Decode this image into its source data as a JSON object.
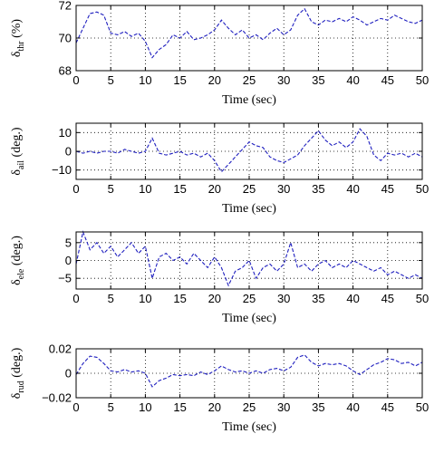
{
  "chart_data": [
    {
      "type": "line",
      "ylabel_main": "δ",
      "ylabel_sub": "thr",
      "ylabel_unit": " (%)",
      "xlabel": "Time (sec)",
      "xlim": [
        0,
        50
      ],
      "ylim": [
        68,
        72
      ],
      "xticks": [
        0,
        5,
        10,
        15,
        20,
        25,
        30,
        35,
        40,
        45,
        50
      ],
      "yticks": [
        68,
        70,
        72
      ],
      "ytick_labels": [
        "68",
        "70",
        "72"
      ],
      "grid": true,
      "series": [
        {
          "x": [
            0,
            1,
            2,
            3,
            4,
            5,
            6,
            7,
            8,
            9,
            10,
            11,
            12,
            13,
            14,
            15,
            16,
            17,
            18,
            19,
            20,
            21,
            22,
            23,
            24,
            25,
            26,
            27,
            28,
            29,
            30,
            31,
            32,
            33,
            34,
            35,
            36,
            37,
            38,
            39,
            40,
            41,
            42,
            43,
            44,
            45,
            46,
            47,
            48,
            49,
            50
          ],
          "y": [
            69.7,
            70.6,
            71.5,
            71.6,
            71.4,
            70.3,
            70.2,
            70.4,
            70.1,
            70.3,
            69.8,
            68.8,
            69.3,
            69.6,
            70.2,
            70.0,
            70.4,
            69.9,
            70.0,
            70.2,
            70.5,
            71.1,
            70.6,
            70.2,
            70.5,
            70.0,
            70.2,
            69.9,
            70.3,
            70.6,
            70.2,
            70.5,
            71.4,
            71.8,
            71.0,
            70.8,
            71.1,
            71.0,
            71.2,
            71.0,
            71.3,
            71.1,
            70.8,
            71.0,
            71.2,
            71.1,
            71.4,
            71.2,
            71.0,
            70.9,
            71.1
          ]
        }
      ]
    },
    {
      "type": "line",
      "ylabel_main": "δ",
      "ylabel_sub": "ail",
      "ylabel_unit": " (deg.)",
      "xlabel": "Time (sec)",
      "xlim": [
        0,
        50
      ],
      "ylim": [
        -15,
        15
      ],
      "xticks": [
        0,
        5,
        10,
        15,
        20,
        25,
        30,
        35,
        40,
        45,
        50
      ],
      "yticks": [
        -10,
        0,
        10
      ],
      "ytick_labels": [
        "−10",
        "0",
        "10"
      ],
      "grid": true,
      "series": [
        {
          "x": [
            0,
            1,
            2,
            3,
            4,
            5,
            6,
            7,
            8,
            9,
            10,
            11,
            12,
            13,
            14,
            15,
            16,
            17,
            18,
            19,
            20,
            21,
            22,
            23,
            24,
            25,
            26,
            27,
            28,
            29,
            30,
            31,
            32,
            33,
            34,
            35,
            36,
            37,
            38,
            39,
            40,
            41,
            42,
            43,
            44,
            45,
            46,
            47,
            48,
            49,
            50
          ],
          "y": [
            0,
            -1,
            0,
            -1,
            0,
            0,
            -1,
            1,
            0,
            -1,
            0,
            7,
            -1,
            -2,
            -1,
            0,
            -2,
            -1,
            -3,
            -1,
            -5,
            -11,
            -7,
            -3,
            1,
            5,
            3,
            2,
            -3,
            -5,
            -6,
            -4,
            -2,
            3,
            7,
            11,
            6,
            3,
            5,
            2,
            5,
            12,
            8,
            -2,
            -5,
            -1,
            -2,
            -1,
            -3,
            -1,
            -3
          ]
        }
      ]
    },
    {
      "type": "line",
      "ylabel_main": "δ",
      "ylabel_sub": "ele",
      "ylabel_unit": " (deg.)",
      "xlabel": "Time (sec)",
      "xlim": [
        0,
        50
      ],
      "ylim": [
        -8,
        8
      ],
      "xticks": [
        0,
        5,
        10,
        15,
        20,
        25,
        30,
        35,
        40,
        45,
        50
      ],
      "yticks": [
        -5,
        0,
        5
      ],
      "ytick_labels": [
        "−5",
        "0",
        "5"
      ],
      "grid": true,
      "series": [
        {
          "x": [
            0,
            1,
            2,
            3,
            4,
            5,
            6,
            7,
            8,
            9,
            10,
            11,
            12,
            13,
            14,
            15,
            16,
            17,
            18,
            19,
            20,
            21,
            22,
            23,
            24,
            25,
            26,
            27,
            28,
            29,
            30,
            31,
            32,
            33,
            34,
            35,
            36,
            37,
            38,
            39,
            40,
            41,
            42,
            43,
            44,
            45,
            46,
            47,
            48,
            49,
            50
          ],
          "y": [
            -1,
            8,
            3,
            5,
            2,
            4,
            1,
            3,
            5,
            2,
            4,
            -5,
            1,
            2,
            0,
            1,
            -1,
            2,
            0,
            -2,
            1,
            -2,
            -7,
            -3,
            -2,
            0,
            -5,
            -2,
            -1,
            -3,
            -1,
            5,
            -2,
            -1,
            -3,
            -1,
            0,
            -2,
            -1,
            -2,
            0,
            -1,
            -2,
            -3,
            -2,
            -4,
            -3,
            -4,
            -5,
            -4,
            -5
          ]
        }
      ]
    },
    {
      "type": "line",
      "ylabel_main": "δ",
      "ylabel_sub": "rud",
      "ylabel_unit": " (deg.)",
      "xlabel": "Time (sec)",
      "xlim": [
        0,
        50
      ],
      "ylim": [
        -0.02,
        0.02
      ],
      "xticks": [
        0,
        5,
        10,
        15,
        20,
        25,
        30,
        35,
        40,
        45,
        50
      ],
      "yticks": [
        -0.02,
        0,
        0.02
      ],
      "ytick_labels": [
        "−0.02",
        "0",
        "0.02"
      ],
      "grid": true,
      "series": [
        {
          "x": [
            0,
            1,
            2,
            3,
            4,
            5,
            6,
            7,
            8,
            9,
            10,
            11,
            12,
            13,
            14,
            15,
            16,
            17,
            18,
            19,
            20,
            21,
            22,
            23,
            24,
            25,
            26,
            27,
            28,
            29,
            30,
            31,
            32,
            33,
            34,
            35,
            36,
            37,
            38,
            39,
            40,
            41,
            42,
            43,
            44,
            45,
            46,
            47,
            48,
            49,
            50
          ],
          "y": [
            -0.001,
            0.008,
            0.014,
            0.013,
            0.008,
            0.002,
            0.001,
            0.003,
            0.001,
            0.002,
            0.0,
            -0.011,
            -0.006,
            -0.004,
            -0.001,
            -0.002,
            -0.001,
            -0.002,
            0.001,
            -0.001,
            0.002,
            0.006,
            0.003,
            0.001,
            0.002,
            0.0,
            0.002,
            0.0,
            0.003,
            0.004,
            0.002,
            0.005,
            0.013,
            0.015,
            0.009,
            0.006,
            0.008,
            0.007,
            0.008,
            0.006,
            0.002,
            -0.001,
            0.003,
            0.007,
            0.009,
            0.012,
            0.011,
            0.008,
            0.009,
            0.006,
            0.009
          ]
        }
      ]
    }
  ]
}
